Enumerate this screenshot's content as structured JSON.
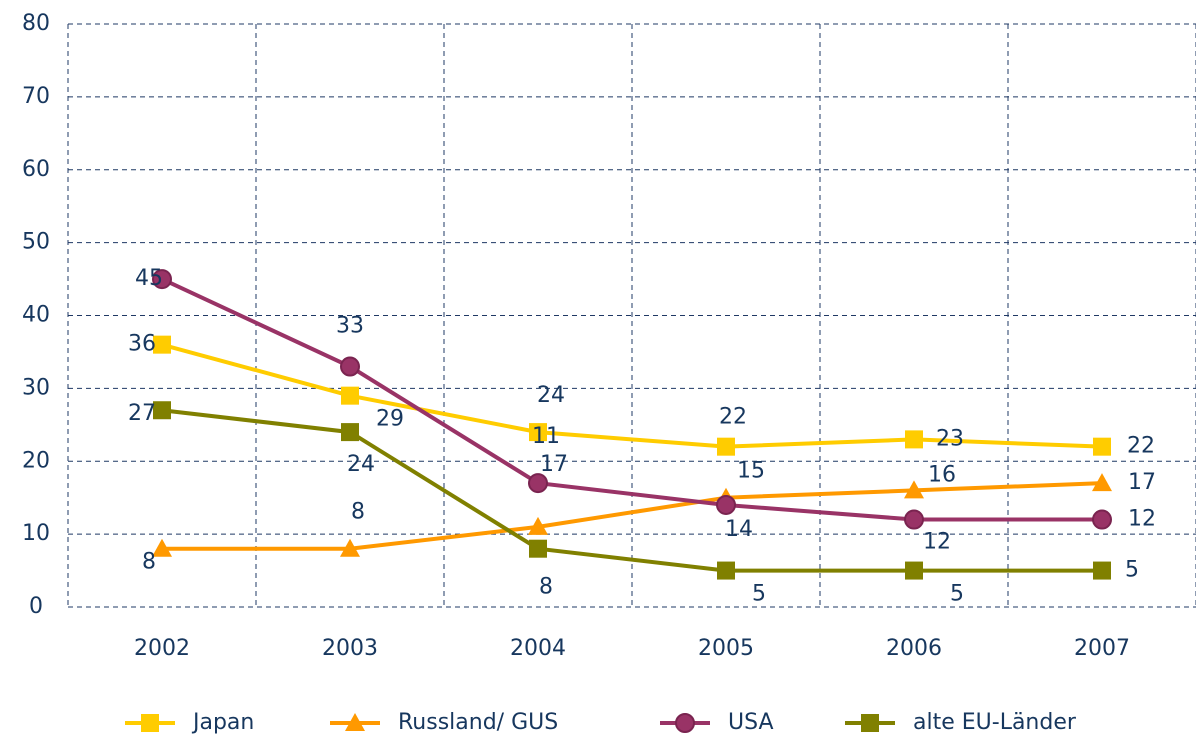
{
  "chart_data": {
    "type": "line",
    "categories": [
      "2002",
      "2003",
      "2004",
      "2005",
      "2006",
      "2007"
    ],
    "series": [
      {
        "name": "Japan",
        "color": "#ffcc00",
        "marker": "square",
        "values": [
          36,
          29,
          24,
          22,
          23,
          22
        ]
      },
      {
        "name": "Russland/ GUS",
        "color": "#ff9900",
        "marker": "triangle",
        "values": [
          8,
          8,
          11,
          15,
          16,
          17
        ]
      },
      {
        "name": "USA",
        "color": "#993366",
        "marker": "circle",
        "values": [
          45,
          33,
          17,
          14,
          12,
          12
        ]
      },
      {
        "name": "alte EU-Länder",
        "color": "#808000",
        "marker": "square",
        "values": [
          27,
          24,
          8,
          5,
          5,
          5
        ]
      }
    ],
    "ylim": [
      0,
      80
    ],
    "yticks": [
      0,
      10,
      20,
      30,
      40,
      50,
      60,
      70,
      80
    ],
    "grid": true,
    "legend": "bottom"
  }
}
